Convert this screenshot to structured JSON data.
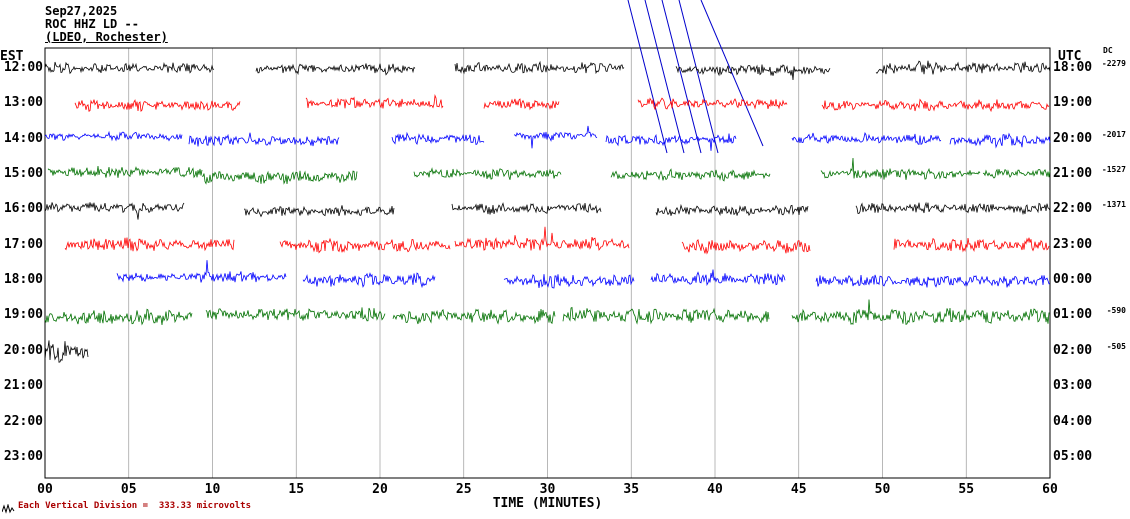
{
  "header": {
    "date": "Sep27,2025",
    "station": "ROC HHZ LD --",
    "location": "(LDEO, Rochester)"
  },
  "axes": {
    "left_title": "EST",
    "right_title": "UTC",
    "dc_title": "DC",
    "x_label": "TIME (MINUTES)",
    "x_ticks": [
      "00",
      "05",
      "10",
      "15",
      "20",
      "25",
      "30",
      "35",
      "40",
      "45",
      "50",
      "55",
      "60"
    ]
  },
  "footer": {
    "scale_note": "Each Vertical Division =  333.33 microvolts"
  },
  "chart_data": {
    "type": "line",
    "subtype": "seismogram-helicorder",
    "title": "ROC HHZ LD -- (LDEO, Rochester) Sep27,2025",
    "xlabel": "TIME (MINUTES)",
    "x_range_minutes": [
      0,
      60
    ],
    "minutes_per_row": 60,
    "vertical_division_microvolts": 333.33,
    "grid": true,
    "rows": [
      {
        "est": "12:00",
        "utc": "18:00",
        "color": "#000000",
        "dc": "-2279",
        "segments": [
          [
            0,
            10.1,
            0,
            5
          ],
          [
            12.6,
            22.1,
            1,
            5
          ],
          [
            24.5,
            34.6,
            0,
            5
          ],
          [
            37.7,
            46.9,
            2,
            5
          ],
          [
            49.6,
            60,
            0,
            6
          ]
        ]
      },
      {
        "est": "13:00",
        "utc": "19:00",
        "color": "#ff0000",
        "dc": "",
        "segments": [
          [
            1.8,
            11.7,
            2,
            5
          ],
          [
            15.6,
            23.8,
            0,
            5
          ],
          [
            26.2,
            30.7,
            1,
            5
          ],
          [
            35.4,
            44.3,
            0,
            5
          ],
          [
            46.4,
            60,
            2,
            5
          ]
        ]
      },
      {
        "est": "14:00",
        "utc": "20:00",
        "color": "#0000ff",
        "dc": "-2017",
        "segments": [
          [
            0,
            8.2,
            -2,
            4
          ],
          [
            8.6,
            17.6,
            2,
            5
          ],
          [
            20.7,
            26.2,
            0,
            5
          ],
          [
            28,
            33,
            -3,
            4
          ],
          [
            33.5,
            41.3,
            1,
            5
          ],
          [
            44.6,
            53.5,
            0,
            5
          ],
          [
            54,
            60,
            2,
            6
          ]
        ]
      },
      {
        "est": "15:00",
        "utc": "21:00",
        "color": "#007000",
        "dc": "-1527",
        "segments": [
          [
            0.2,
            9.4,
            -2,
            5
          ],
          [
            9.4,
            18.7,
            3,
            6
          ],
          [
            22,
            30.8,
            0,
            5
          ],
          [
            33.8,
            43.3,
            1,
            5
          ],
          [
            46.3,
            55.8,
            0,
            5
          ],
          [
            56,
            60,
            -1,
            5
          ]
        ]
      },
      {
        "est": "16:00",
        "utc": "22:00",
        "color": "#000000",
        "dc": "-1371",
        "segments": [
          [
            0,
            8.3,
            -2,
            5
          ],
          [
            11.9,
            20.9,
            2,
            5
          ],
          [
            24.3,
            33.2,
            -1,
            5
          ],
          [
            36.5,
            45.6,
            1,
            5
          ],
          [
            48.4,
            60,
            -1,
            5
          ]
        ]
      },
      {
        "est": "17:00",
        "utc": "23:00",
        "color": "#ff0000",
        "dc": "",
        "segments": [
          [
            1.2,
            11.3,
            0,
            6
          ],
          [
            14,
            24.2,
            1,
            6
          ],
          [
            24.5,
            34.9,
            -1,
            6
          ],
          [
            38,
            45.7,
            2,
            6
          ],
          [
            50.7,
            60,
            0,
            6
          ]
        ]
      },
      {
        "est": "18:00",
        "utc": "00:00",
        "color": "#0000ff",
        "dc": "",
        "segments": [
          [
            4.3,
            14.4,
            -3,
            5
          ],
          [
            15.4,
            23.3,
            0,
            6
          ],
          [
            27.4,
            35.2,
            1,
            6
          ],
          [
            36.2,
            44.2,
            -1,
            6
          ],
          [
            46,
            60,
            1,
            6
          ]
        ]
      },
      {
        "est": "19:00",
        "utc": "01:00",
        "color": "#007000",
        "dc": "-590",
        "segments": [
          [
            0,
            8.8,
            2,
            7
          ],
          [
            9.6,
            20.3,
            -1,
            6
          ],
          [
            20.8,
            30.5,
            1,
            7
          ],
          [
            30.9,
            43.2,
            0,
            7
          ],
          [
            44.6,
            60,
            1,
            7
          ]
        ]
      },
      {
        "est": "20:00",
        "utc": "02:00",
        "color": "#000000",
        "dc": "-505",
        "segments": [
          [
            0,
            2.6,
            0,
            11
          ]
        ]
      },
      {
        "est": "21:00",
        "utc": "03:00",
        "color": "#ff0000",
        "dc": "",
        "segments": []
      },
      {
        "est": "22:00",
        "utc": "04:00",
        "color": "#0000ff",
        "dc": "",
        "segments": []
      },
      {
        "est": "23:00",
        "utc": "05:00",
        "color": "#007000",
        "dc": "",
        "segments": []
      }
    ],
    "annotations": {
      "description": "diagonal telemetry/timing marks crossing upper rows",
      "color": "#0000cc",
      "diagonal_lines": [
        [
          628,
          0,
          667,
          153
        ],
        [
          645,
          0,
          684,
          153
        ],
        [
          662,
          0,
          701,
          153
        ],
        [
          679,
          0,
          718,
          153
        ],
        [
          701,
          0,
          763,
          146
        ]
      ]
    }
  }
}
